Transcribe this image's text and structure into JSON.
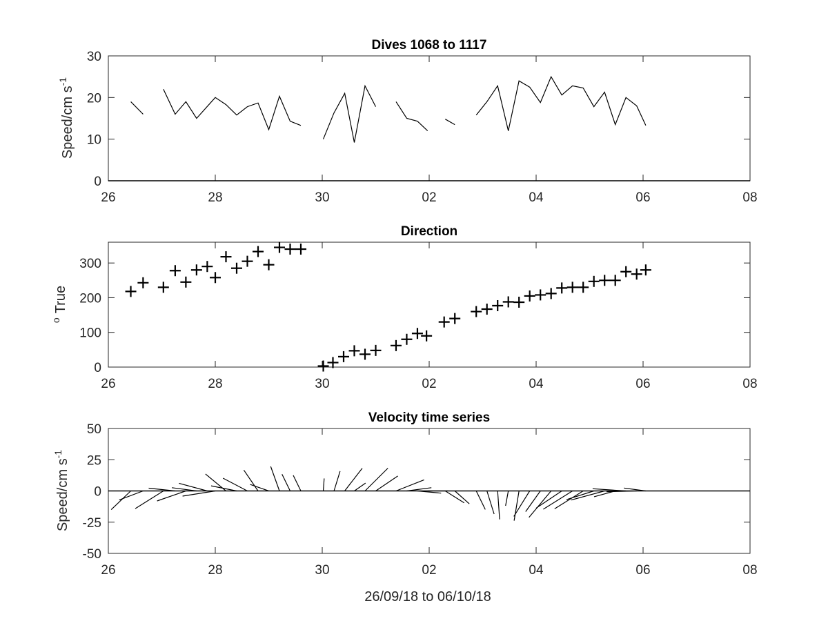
{
  "figure": {
    "x_tick_labels": [
      "26",
      "28",
      "30",
      "02",
      "04",
      "06",
      "08"
    ],
    "x_range_days": [
      0,
      12
    ],
    "xlabel": "26/09/18 to 06/10/18"
  },
  "chart_data": [
    {
      "type": "line",
      "title": "Dives 1068 to 1117",
      "ylabel_main": "Speed/cm s",
      "ylabel_sup": "-1",
      "ylim": [
        0,
        30
      ],
      "yticks": [
        0,
        10,
        20,
        30
      ],
      "ytick_labels": [
        "0",
        "10",
        "20",
        "30"
      ],
      "segments": [
        [
          [
            0.42,
            19
          ],
          [
            0.65,
            16
          ]
        ],
        [
          [
            1.03,
            22
          ],
          [
            1.25,
            16
          ],
          [
            1.45,
            19
          ],
          [
            1.65,
            15
          ],
          [
            2.0,
            20
          ],
          [
            2.2,
            18.3
          ],
          [
            2.4,
            15.8
          ],
          [
            2.6,
            17.8
          ],
          [
            2.8,
            18.7
          ],
          [
            3.0,
            12.3
          ],
          [
            3.2,
            20.3
          ],
          [
            3.4,
            14.3
          ],
          [
            3.6,
            13.3
          ]
        ],
        [
          [
            4.02,
            10
          ],
          [
            4.22,
            16.3
          ],
          [
            4.42,
            21
          ],
          [
            4.6,
            9.2
          ],
          [
            4.8,
            22.8
          ],
          [
            5.0,
            17.8
          ]
        ],
        [
          [
            5.38,
            19
          ],
          [
            5.58,
            15
          ],
          [
            5.78,
            14.3
          ],
          [
            5.97,
            12
          ]
        ],
        [
          [
            6.3,
            14.8
          ],
          [
            6.48,
            13.5
          ]
        ],
        [
          [
            6.88,
            15.8
          ],
          [
            7.08,
            19
          ],
          [
            7.28,
            22.8
          ],
          [
            7.48,
            12
          ],
          [
            7.68,
            24
          ],
          [
            7.88,
            22.5
          ],
          [
            8.08,
            18.8
          ],
          [
            8.28,
            25
          ],
          [
            8.48,
            20.6
          ],
          [
            8.68,
            22.8
          ],
          [
            8.88,
            22.3
          ],
          [
            9.08,
            17.8
          ],
          [
            9.28,
            21.3
          ],
          [
            9.48,
            13.5
          ],
          [
            9.68,
            20
          ],
          [
            9.88,
            18
          ],
          [
            10.05,
            13.3
          ]
        ]
      ]
    },
    {
      "type": "scatter",
      "title": "Direction",
      "ylabel_main": "True",
      "ylabel_sup": "o",
      "ylim": [
        0,
        360
      ],
      "yticks": [
        0,
        100,
        200,
        300
      ],
      "ytick_labels": [
        "0",
        "100",
        "200",
        "300"
      ],
      "marker": "+",
      "points": [
        [
          0.42,
          218
        ],
        [
          0.65,
          243
        ],
        [
          1.03,
          230
        ],
        [
          1.25,
          278
        ],
        [
          1.45,
          245
        ],
        [
          1.65,
          280
        ],
        [
          1.85,
          290
        ],
        [
          2.0,
          258
        ],
        [
          2.2,
          318
        ],
        [
          2.4,
          285
        ],
        [
          2.6,
          305
        ],
        [
          2.8,
          333
        ],
        [
          3.0,
          295
        ],
        [
          3.2,
          345
        ],
        [
          3.4,
          340
        ],
        [
          3.6,
          340
        ],
        [
          4.02,
          3
        ],
        [
          4.2,
          13
        ],
        [
          4.4,
          30
        ],
        [
          4.6,
          47
        ],
        [
          4.8,
          37
        ],
        [
          5.0,
          48
        ],
        [
          5.38,
          62
        ],
        [
          5.58,
          80
        ],
        [
          5.78,
          97
        ],
        [
          5.95,
          90
        ],
        [
          6.28,
          130
        ],
        [
          6.48,
          140
        ],
        [
          6.88,
          160
        ],
        [
          7.08,
          167
        ],
        [
          7.28,
          177
        ],
        [
          7.48,
          188
        ],
        [
          7.68,
          187
        ],
        [
          7.88,
          205
        ],
        [
          8.08,
          208
        ],
        [
          8.28,
          212
        ],
        [
          8.48,
          228
        ],
        [
          8.68,
          230
        ],
        [
          8.88,
          230
        ],
        [
          9.08,
          247
        ],
        [
          9.28,
          250
        ],
        [
          9.48,
          250
        ],
        [
          9.68,
          275
        ],
        [
          9.88,
          268
        ],
        [
          10.05,
          280
        ]
      ]
    },
    {
      "type": "quiver",
      "title": "Velocity time series",
      "ylabel_main": "Speed/cm s",
      "ylabel_sup": "-1",
      "ylim": [
        -50,
        50
      ],
      "yticks": [
        50,
        25,
        0,
        -25,
        -50
      ],
      "ytick_labels": [
        "50",
        "25",
        "0",
        "-25",
        "-50"
      ],
      "sticks": [
        [
          0.42,
          19,
          218
        ],
        [
          0.65,
          16,
          243
        ],
        [
          1.03,
          22,
          230
        ],
        [
          1.25,
          16,
          278
        ],
        [
          1.45,
          19,
          245
        ],
        [
          1.65,
          15,
          280
        ],
        [
          1.85,
          18,
          290
        ],
        [
          2.0,
          20,
          258
        ],
        [
          2.2,
          18.3,
          318
        ],
        [
          2.4,
          15.8,
          285
        ],
        [
          2.6,
          17.8,
          305
        ],
        [
          2.8,
          18.7,
          333
        ],
        [
          3.0,
          12.3,
          295
        ],
        [
          3.2,
          20.3,
          345
        ],
        [
          3.4,
          14.3,
          340
        ],
        [
          3.6,
          13.3,
          340
        ],
        [
          4.02,
          10,
          3
        ],
        [
          4.22,
          16.3,
          13
        ],
        [
          4.42,
          21,
          30
        ],
        [
          4.6,
          9.2,
          47
        ],
        [
          4.8,
          22.8,
          37
        ],
        [
          5.0,
          17.8,
          48
        ],
        [
          5.38,
          19,
          62
        ],
        [
          5.58,
          15,
          80
        ],
        [
          5.78,
          14.3,
          97
        ],
        [
          5.97,
          12,
          90
        ],
        [
          6.3,
          14.8,
          130
        ],
        [
          6.48,
          13.5,
          140
        ],
        [
          6.88,
          15.8,
          160
        ],
        [
          7.08,
          19,
          167
        ],
        [
          7.28,
          22.8,
          177
        ],
        [
          7.48,
          12,
          188
        ],
        [
          7.68,
          24,
          187
        ],
        [
          7.88,
          22.5,
          205
        ],
        [
          8.08,
          18.8,
          208
        ],
        [
          8.28,
          25,
          212
        ],
        [
          8.48,
          20.6,
          228
        ],
        [
          8.68,
          22.8,
          230
        ],
        [
          8.88,
          22.3,
          230
        ],
        [
          9.08,
          17.8,
          247
        ],
        [
          9.28,
          21.3,
          250
        ],
        [
          9.48,
          13.5,
          250
        ],
        [
          9.68,
          20,
          275
        ],
        [
          9.88,
          18,
          268
        ],
        [
          10.05,
          13.3,
          280
        ]
      ]
    }
  ]
}
